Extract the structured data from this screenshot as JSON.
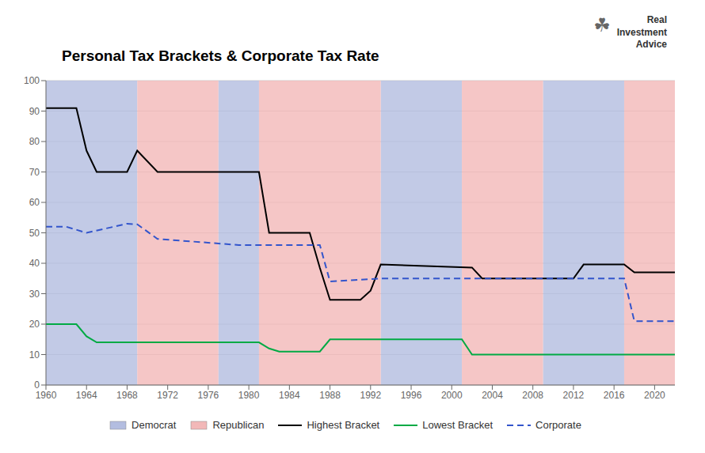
{
  "chart_data": {
    "type": "line",
    "title": "Personal Tax Brackets & Corporate Tax Rate",
    "annotations": [
      "☘",
      "Real\nInvestment\nAdvice"
    ],
    "xlim": [
      1960,
      2022
    ],
    "ylim": [
      0,
      100
    ],
    "xticks": [
      1960,
      1964,
      1968,
      1972,
      1976,
      1980,
      1984,
      1988,
      1992,
      1996,
      2000,
      2004,
      2008,
      2012,
      2016,
      2020
    ],
    "yticks": [
      0,
      10,
      20,
      30,
      40,
      50,
      60,
      70,
      80,
      90,
      100
    ],
    "grid": true,
    "legend": "bottom",
    "regions": [
      {
        "name": "Democrat",
        "color": "#b3bde0",
        "spans": [
          [
            1960,
            1969
          ],
          [
            1977,
            1981
          ],
          [
            1993,
            2001
          ],
          [
            2009,
            2017
          ]
        ]
      },
      {
        "name": "Republican",
        "color": "#f2b8b8",
        "spans": [
          [
            1969,
            1977
          ],
          [
            1981,
            1993
          ],
          [
            2001,
            2009
          ],
          [
            2017,
            2022
          ]
        ]
      }
    ],
    "series": [
      {
        "name": "Highest Bracket",
        "color": "#000000",
        "line_style": "solid",
        "x": [
          1960,
          1963,
          1964,
          1965,
          1968,
          1969,
          1971,
          1972,
          1980,
          1981,
          1982,
          1986,
          1987,
          1988,
          1991,
          1992,
          1993,
          2002,
          2003,
          2012,
          2013,
          2017,
          2018,
          2022
        ],
        "values": [
          91,
          91,
          77,
          70,
          70,
          77,
          70,
          70,
          70,
          70,
          50,
          50,
          38.5,
          28,
          28,
          31,
          39.6,
          38.6,
          35,
          35,
          39.6,
          39.6,
          37,
          37
        ]
      },
      {
        "name": "Lowest Bracket",
        "color": "#00aa44",
        "line_style": "solid",
        "x": [
          1960,
          1963,
          1964,
          1965,
          1976,
          1977,
          1980,
          1981,
          1982,
          1983,
          1987,
          1988,
          1991,
          1992,
          2001,
          2002,
          2012,
          2013,
          2022
        ],
        "values": [
          20,
          20,
          16,
          14,
          14,
          14,
          14,
          14,
          12,
          11,
          11,
          15,
          15,
          15,
          15,
          10,
          10,
          10,
          10
        ]
      },
      {
        "name": "Corporate",
        "color": "#3355cc",
        "line_style": "dashed",
        "x": [
          1960,
          1962,
          1964,
          1968,
          1969,
          1971,
          1979,
          1987,
          1988,
          1993,
          2017,
          2018,
          2022
        ],
        "values": [
          52,
          52,
          50,
          53,
          52.8,
          48,
          46,
          46,
          34,
          35,
          35,
          21,
          21
        ]
      }
    ]
  }
}
